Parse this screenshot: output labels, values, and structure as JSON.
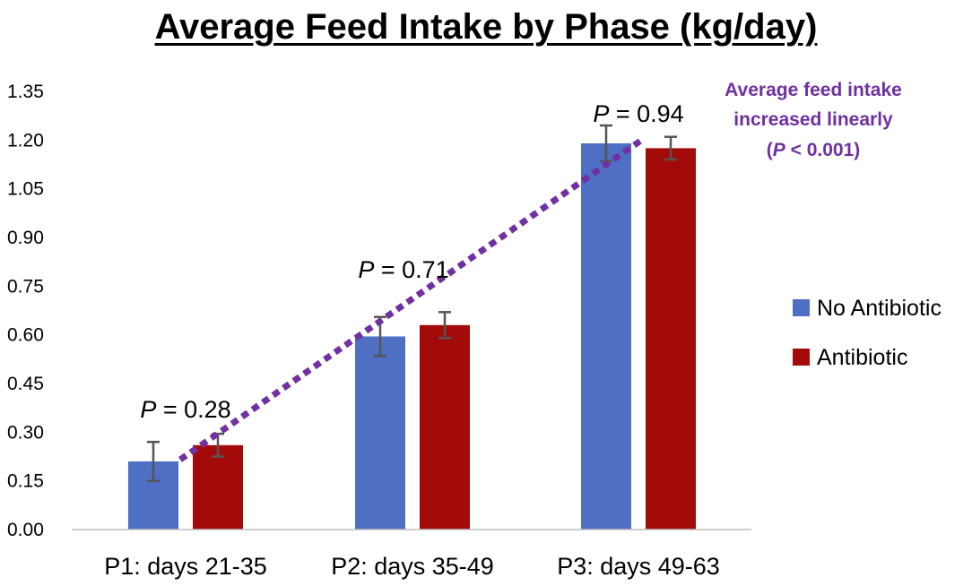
{
  "chart_data": {
    "type": "bar",
    "title": "Average Feed Intake by Phase (kg/day)",
    "xlabel": "",
    "ylabel": "",
    "ylim": [
      0,
      1.35
    ],
    "yticks": [
      "0.00",
      "0.15",
      "0.30",
      "0.45",
      "0.60",
      "0.75",
      "0.90",
      "1.05",
      "1.20",
      "1.35"
    ],
    "categories": [
      "P1: days 21-35",
      "P2: days 35-49",
      "P3: days 49-63"
    ],
    "series": [
      {
        "name": "No Antibiotic",
        "color": "#4f6fc4",
        "values": [
          0.21,
          0.595,
          1.19
        ],
        "errors": [
          0.06,
          0.06,
          0.055
        ]
      },
      {
        "name": "Antibiotic",
        "color": "#a30a0a",
        "values": [
          0.26,
          0.63,
          1.175
        ],
        "errors": [
          0.035,
          0.04,
          0.035
        ]
      }
    ],
    "p_labels": [
      {
        "prefix": "P",
        "text": " = 0.28"
      },
      {
        "prefix": "P",
        "text": " = 0.71"
      },
      {
        "prefix": "P",
        "text": " = 0.94"
      }
    ],
    "trend": {
      "line1": "Average feed intake",
      "line2": "increased linearly",
      "line3_open": "(",
      "line3_italic": "P",
      "line3_rest": " < 0.001)",
      "color": "#7030a0"
    },
    "legend_position": "right",
    "grid": false
  }
}
